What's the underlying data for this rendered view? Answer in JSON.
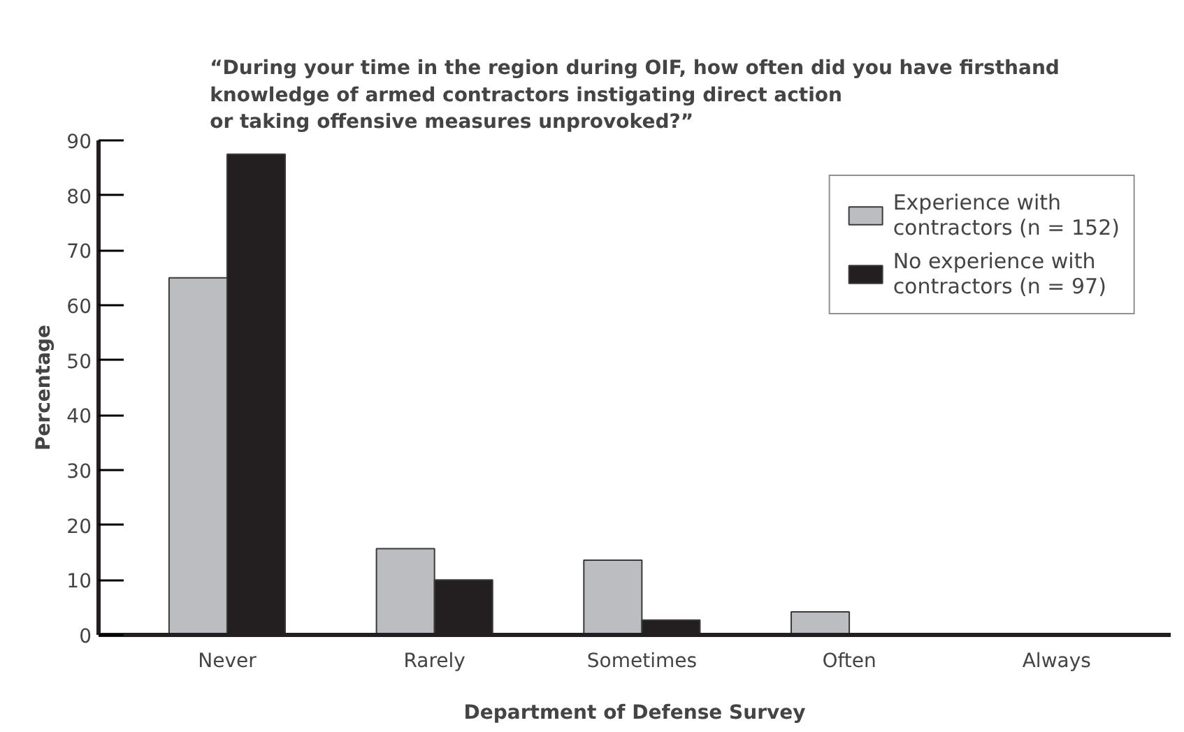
{
  "chart_data": {
    "type": "bar",
    "title": "“During your time in the region during OIF, how often did you have firsthand\nknowledge of armed contractors instigating direct action\nor taking offensive measures unprovoked?”",
    "xlabel": "Department of Defense Survey",
    "ylabel": "Percentage",
    "categories": [
      "Never",
      "Rarely",
      "Sometimes",
      "Often",
      "Always"
    ],
    "series": [
      {
        "name": "Experience with\ncontractors (n = 152)",
        "color": "#bcbdc0",
        "values": [
          65,
          15.7,
          13.6,
          4.2,
          0
        ]
      },
      {
        "name": "No experience with\ncontractors (n = 97)",
        "color": "#231f20",
        "values": [
          87.5,
          10,
          2.7,
          0,
          0
        ]
      }
    ],
    "ylim": [
      0,
      90
    ],
    "yticks": [
      0,
      10,
      20,
      30,
      40,
      50,
      60,
      70,
      80,
      90
    ],
    "grid": false,
    "legend": "top right"
  }
}
